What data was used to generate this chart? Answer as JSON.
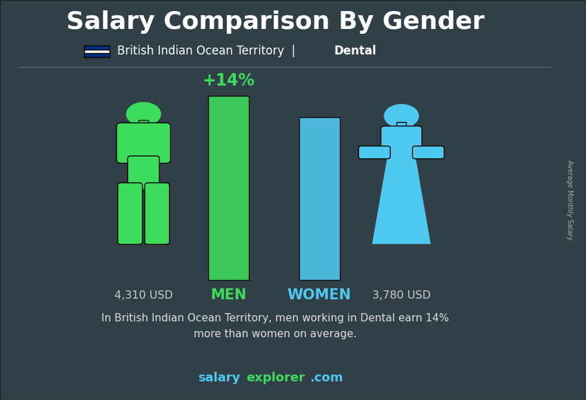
{
  "title": "Salary Comparison By Gender",
  "subtitle_country": "British Indian Ocean Territory",
  "subtitle_field": "Dental",
  "men_salary_label": "4,310 USD",
  "women_salary_label": "3,780 USD",
  "percent_diff": "+14%",
  "men_label": "MEN",
  "women_label": "WOMEN",
  "men_color": "#3ddc5c",
  "women_color": "#4ec9f0",
  "background_color": "#3a4a50",
  "title_color": "#ffffff",
  "subtitle_color": "#ffffff",
  "men_text_color": "#3ddc5c",
  "women_text_color": "#4ec9f0",
  "salary_text_color": "#cccccc",
  "percent_color": "#3ddc5c",
  "bottom_text_color": "#dddddd",
  "website_salary_color": "#4ec9f0",
  "website_explorer_color": "#3ddc5c",
  "website_com_color": "#4ec9f0",
  "bottom_text_line1": "In British Indian Ocean Territory, men working in Dental earn 14%",
  "bottom_text_line2": "more than women on average.",
  "right_label": "Average Monthly Salary"
}
